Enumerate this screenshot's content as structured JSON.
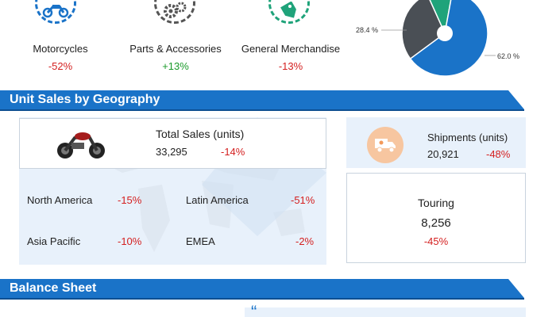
{
  "segments": [
    {
      "label": "Motorcycles",
      "value": "-52%",
      "icon": "motorcycle-icon"
    },
    {
      "label": "Parts & Accessories",
      "value": "+13%",
      "icon": "gears-icon"
    },
    {
      "label": "General Merchandise",
      "value": "-13%",
      "icon": "price-tag-icon"
    }
  ],
  "pie": {
    "label_left": "28.4 %",
    "label_right": "62.0 %",
    "slices": [
      {
        "value": 62.0,
        "color": "#1a73c8"
      },
      {
        "value": 28.4,
        "color": "#4a4f55"
      },
      {
        "value": 9.6,
        "color": "#1fa37a"
      }
    ]
  },
  "geography": {
    "title": "Unit Sales by Geography",
    "total_label": "Total Sales (units)",
    "total_value": "33,295",
    "total_change": "-14%",
    "regions": [
      {
        "name": "North America",
        "change": "-15%"
      },
      {
        "name": "Latin America",
        "change": "-51%"
      },
      {
        "name": "Asia Pacific",
        "change": "-10%"
      },
      {
        "name": "EMEA",
        "change": "-2%"
      }
    ],
    "shipments_label": "Shipments (units)",
    "shipments_value": "20,921",
    "shipments_change": "-48%",
    "touring_label": "Touring",
    "touring_value": "8,256",
    "touring_change": "-45%"
  },
  "balance": {
    "title": "Balance Sheet",
    "quote_mark": "“"
  }
}
